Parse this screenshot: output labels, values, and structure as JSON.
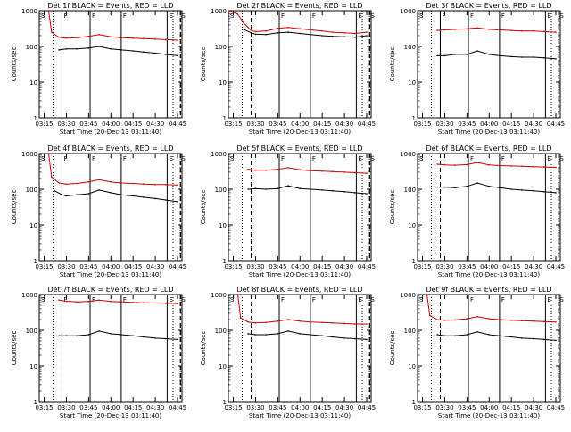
{
  "figure": {
    "xlabel": "Start Time (20-Dec-13 03:11:40)",
    "ylabel": "Counts/sec",
    "x_tick_labels": [
      "03:15",
      "03:30",
      "03:45",
      "04:00",
      "04:15",
      "04:30",
      "04:45"
    ],
    "y_tick_labels": [
      "1",
      "10",
      "100",
      "1000"
    ],
    "panel_titles": [
      "Det 1f BLACK = Events, RED = LLD",
      "Det 2f BLACK = Events, RED = LLD",
      "Det 3f BLACK = Events, RED = LLD",
      "Det 4f BLACK = Events, RED = LLD",
      "Det 5f BLACK = Events, RED = LLD",
      "Det 6f BLACK = Events, RED = LLD",
      "Det 7f BLACK = Events, RED = LLD",
      "Det 8f BLACK = Events, RED = LLD",
      "Det 9f BLACK = Events, RED = LLD"
    ],
    "colors": {
      "events": "#000000",
      "lld": "#cc0000",
      "axes": "#000000",
      "background": "#ffffff"
    }
  },
  "chart_data": [
    {
      "type": "line",
      "title": "Det 1f BLACK = Events, RED = LLD",
      "xlabel": "Start Time (20-Dec-13 03:11:40)",
      "ylabel": "Counts/sec",
      "xlim": [
        "03:11:40",
        "04:48:00"
      ],
      "ylim": [
        1,
        1000
      ],
      "log_y": true,
      "markers": {
        "S": "03:12",
        "F": [
          "03:27",
          "03:46",
          "04:07"
        ],
        "E": "04:38",
        "S2": "04:47"
      },
      "series": [
        {
          "name": "LLD",
          "x": [
            "03:18",
            "03:20",
            "03:25",
            "03:30",
            "03:37",
            "03:45",
            "03:52",
            "04:00",
            "04:07",
            "04:15",
            "04:22",
            "04:30",
            "04:37",
            "04:45"
          ],
          "values": [
            1000,
            250,
            180,
            170,
            175,
            190,
            215,
            185,
            175,
            170,
            165,
            160,
            155,
            150
          ]
        },
        {
          "name": "Events",
          "x": [
            "03:25",
            "03:30",
            "03:37",
            "03:45",
            "03:52",
            "04:00",
            "04:07",
            "04:15",
            "04:22",
            "04:30",
            "04:37",
            "04:45"
          ],
          "values": [
            80,
            85,
            85,
            90,
            100,
            85,
            80,
            75,
            70,
            65,
            60,
            55
          ]
        }
      ]
    },
    {
      "type": "line",
      "title": "Det 2f BLACK = Events, RED = LLD",
      "xlabel": "Start Time (20-Dec-13 03:11:40)",
      "ylabel": "Counts/sec",
      "xlim": [
        "03:11:40",
        "04:48:00"
      ],
      "ylim": [
        1,
        1000
      ],
      "log_y": true,
      "markers": {
        "S": "03:12",
        "F": [
          "03:46",
          "04:07"
        ],
        "E": "04:38",
        "S2": "04:47"
      },
      "series": [
        {
          "name": "LLD",
          "x": [
            "03:12",
            "03:18",
            "03:22",
            "03:27",
            "03:30",
            "03:37",
            "03:45",
            "03:52",
            "04:00",
            "04:07",
            "04:15",
            "04:22",
            "04:30",
            "04:37",
            "04:45"
          ],
          "values": [
            1000,
            800,
            450,
            280,
            260,
            270,
            320,
            340,
            310,
            290,
            270,
            250,
            240,
            230,
            250
          ]
        },
        {
          "name": "Events",
          "x": [
            "03:22",
            "03:27",
            "03:30",
            "03:37",
            "03:45",
            "03:52",
            "04:00",
            "04:07",
            "04:15",
            "04:22",
            "04:30",
            "04:37",
            "04:45"
          ],
          "values": [
            300,
            240,
            220,
            215,
            240,
            250,
            230,
            215,
            200,
            190,
            185,
            180,
            200
          ]
        }
      ]
    },
    {
      "type": "line",
      "title": "Det 3f BLACK = Events, RED = LLD",
      "xlabel": "Start Time (20-Dec-13 03:11:40)",
      "ylabel": "Counts/sec",
      "xlim": [
        "03:11:40",
        "04:48:00"
      ],
      "ylim": [
        1,
        1000
      ],
      "log_y": true,
      "markers": {
        "S": "03:12",
        "F": [
          "03:27",
          "03:46",
          "04:07"
        ],
        "E": "04:38",
        "S2": "04:47"
      },
      "series": [
        {
          "name": "LLD",
          "x": [
            "03:25",
            "03:30",
            "03:37",
            "03:45",
            "03:52",
            "04:00",
            "04:07",
            "04:15",
            "04:22",
            "04:30",
            "04:37",
            "04:45"
          ],
          "values": [
            280,
            290,
            300,
            310,
            330,
            300,
            290,
            280,
            270,
            270,
            260,
            250
          ]
        },
        {
          "name": "Events",
          "x": [
            "03:25",
            "03:30",
            "03:37",
            "03:45",
            "03:52",
            "04:00",
            "04:07",
            "04:15",
            "04:22",
            "04:30",
            "04:37",
            "04:45"
          ],
          "values": [
            55,
            55,
            60,
            60,
            75,
            60,
            55,
            52,
            50,
            50,
            48,
            45
          ]
        }
      ]
    },
    {
      "type": "line",
      "title": "Det 4f BLACK = Events, RED = LLD",
      "xlabel": "Start Time (20-Dec-13 03:11:40)",
      "ylabel": "Counts/sec",
      "xlim": [
        "03:11:40",
        "04:48:00"
      ],
      "ylim": [
        1,
        1000
      ],
      "log_y": true,
      "markers": {
        "S": "03:12",
        "F": [
          "03:27",
          "03:46",
          "04:07"
        ],
        "E": "04:38",
        "S2": "04:47"
      },
      "series": [
        {
          "name": "LLD",
          "x": [
            "03:18",
            "03:20",
            "03:25",
            "03:30",
            "03:37",
            "03:45",
            "03:52",
            "04:00",
            "04:07",
            "04:15",
            "04:22",
            "04:30",
            "04:37",
            "04:45"
          ],
          "values": [
            1000,
            220,
            150,
            140,
            145,
            160,
            185,
            160,
            150,
            145,
            140,
            135,
            135,
            130
          ]
        },
        {
          "name": "Events",
          "x": [
            "03:22",
            "03:27",
            "03:30",
            "03:37",
            "03:45",
            "03:52",
            "04:00",
            "04:07",
            "04:15",
            "04:22",
            "04:30",
            "04:37",
            "04:45"
          ],
          "values": [
            90,
            70,
            65,
            70,
            75,
            95,
            80,
            70,
            65,
            60,
            55,
            50,
            45
          ]
        }
      ]
    },
    {
      "type": "line",
      "title": "Det 5f BLACK = Events, RED = LLD",
      "xlabel": "Start Time (20-Dec-13 03:11:40)",
      "ylabel": "Counts/sec",
      "xlim": [
        "03:11:40",
        "04:48:00"
      ],
      "ylim": [
        1,
        1000
      ],
      "log_y": true,
      "markers": {
        "S": "03:12",
        "F": [
          "03:46",
          "04:07"
        ],
        "E": "04:38",
        "S2": "04:47"
      },
      "series": [
        {
          "name": "LLD",
          "x": [
            "03:25",
            "03:30",
            "03:37",
            "03:45",
            "03:52",
            "04:00",
            "04:07",
            "04:15",
            "04:22",
            "04:30",
            "04:37",
            "04:45"
          ],
          "values": [
            360,
            340,
            340,
            360,
            400,
            350,
            330,
            320,
            310,
            300,
            290,
            280
          ]
        },
        {
          "name": "Events",
          "x": [
            "03:25",
            "03:30",
            "03:37",
            "03:45",
            "03:52",
            "04:00",
            "04:07",
            "04:15",
            "04:22",
            "04:30",
            "04:37",
            "04:45"
          ],
          "values": [
            100,
            105,
            100,
            105,
            125,
            105,
            100,
            95,
            90,
            85,
            80,
            75
          ]
        }
      ]
    },
    {
      "type": "line",
      "title": "Det 6f BLACK = Events, RED = LLD",
      "xlabel": "Start Time (20-Dec-13 03:11:40)",
      "ylabel": "Counts/sec",
      "xlim": [
        "03:11:40",
        "04:48:00"
      ],
      "ylim": [
        1,
        1000
      ],
      "log_y": true,
      "markers": {
        "S": "03:12",
        "F": [
          "03:46",
          "04:07"
        ],
        "E": "04:38",
        "S2": "04:47"
      },
      "series": [
        {
          "name": "LLD",
          "x": [
            "03:25",
            "03:30",
            "03:37",
            "03:45",
            "03:52",
            "04:00",
            "04:07",
            "04:15",
            "04:22",
            "04:30",
            "04:37",
            "04:45"
          ],
          "values": [
            500,
            480,
            470,
            490,
            560,
            480,
            460,
            450,
            440,
            430,
            420,
            410
          ]
        },
        {
          "name": "Events",
          "x": [
            "03:25",
            "03:30",
            "03:37",
            "03:45",
            "03:52",
            "04:00",
            "04:07",
            "04:15",
            "04:22",
            "04:30",
            "04:37",
            "04:45"
          ],
          "values": [
            115,
            115,
            110,
            120,
            150,
            120,
            110,
            100,
            95,
            90,
            85,
            80
          ]
        }
      ]
    },
    {
      "type": "line",
      "title": "Det 7f BLACK = Events, RED = LLD",
      "xlabel": "Start Time (20-Dec-13 03:11:40)",
      "ylabel": "Counts/sec",
      "xlim": [
        "03:11:40",
        "04:48:00"
      ],
      "ylim": [
        1,
        1000
      ],
      "log_y": true,
      "markers": {
        "S": "03:12",
        "F": [
          "03:27",
          "03:46",
          "04:07"
        ],
        "E": "04:38",
        "S2": "04:47"
      },
      "series": [
        {
          "name": "LLD",
          "x": [
            "03:25",
            "03:30",
            "03:37",
            "03:45",
            "03:52",
            "04:00",
            "04:07",
            "04:15",
            "04:22",
            "04:30",
            "04:37",
            "04:45"
          ],
          "values": [
            700,
            650,
            620,
            640,
            700,
            640,
            620,
            600,
            590,
            580,
            570,
            560
          ]
        },
        {
          "name": "Events",
          "x": [
            "03:25",
            "03:30",
            "03:37",
            "03:45",
            "03:52",
            "04:00",
            "04:07",
            "04:15",
            "04:22",
            "04:30",
            "04:37",
            "04:45"
          ],
          "values": [
            70,
            70,
            70,
            75,
            95,
            80,
            75,
            70,
            65,
            60,
            58,
            55
          ]
        }
      ]
    },
    {
      "type": "line",
      "title": "Det 8f BLACK = Events, RED = LLD",
      "xlabel": "Start Time (20-Dec-13 03:11:40)",
      "ylabel": "Counts/sec",
      "xlim": [
        "03:11:40",
        "04:48:00"
      ],
      "ylim": [
        1,
        1000
      ],
      "log_y": true,
      "markers": {
        "S": "03:12",
        "F": [
          "03:46",
          "04:07"
        ],
        "E": "04:38",
        "S2": "04:47"
      },
      "series": [
        {
          "name": "LLD",
          "x": [
            "03:18",
            "03:20",
            "03:25",
            "03:30",
            "03:37",
            "03:45",
            "03:52",
            "04:00",
            "04:07",
            "04:15",
            "04:22",
            "04:30",
            "04:37",
            "04:45"
          ],
          "values": [
            1000,
            220,
            170,
            160,
            165,
            180,
            200,
            180,
            170,
            165,
            160,
            155,
            150,
            150
          ]
        },
        {
          "name": "Events",
          "x": [
            "03:25",
            "03:30",
            "03:37",
            "03:45",
            "03:52",
            "04:00",
            "04:07",
            "04:15",
            "04:22",
            "04:30",
            "04:37",
            "04:45"
          ],
          "values": [
            80,
            75,
            75,
            80,
            95,
            80,
            75,
            70,
            65,
            60,
            58,
            55
          ]
        }
      ]
    },
    {
      "type": "line",
      "title": "Det 9f BLACK = Events, RED = LLD",
      "xlabel": "Start Time (20-Dec-13 03:11:40)",
      "ylabel": "Counts/sec",
      "xlim": [
        "03:11:40",
        "04:48:00"
      ],
      "ylim": [
        1,
        1000
      ],
      "log_y": true,
      "markers": {
        "S": "03:12",
        "F": [
          "03:46",
          "04:07"
        ],
        "E": "04:38",
        "S2": "04:47"
      },
      "series": [
        {
          "name": "LLD",
          "x": [
            "03:18",
            "03:20",
            "03:25",
            "03:30",
            "03:37",
            "03:45",
            "03:52",
            "04:00",
            "04:07",
            "04:15",
            "04:22",
            "04:30",
            "04:37",
            "04:45"
          ],
          "values": [
            1000,
            260,
            200,
            190,
            195,
            210,
            240,
            210,
            200,
            190,
            185,
            180,
            175,
            170
          ]
        },
        {
          "name": "Events",
          "x": [
            "03:25",
            "03:30",
            "03:37",
            "03:45",
            "03:52",
            "04:00",
            "04:07",
            "04:15",
            "04:22",
            "04:30",
            "04:37",
            "04:45"
          ],
          "values": [
            75,
            70,
            70,
            75,
            90,
            75,
            70,
            65,
            60,
            58,
            55,
            52
          ]
        }
      ]
    }
  ]
}
